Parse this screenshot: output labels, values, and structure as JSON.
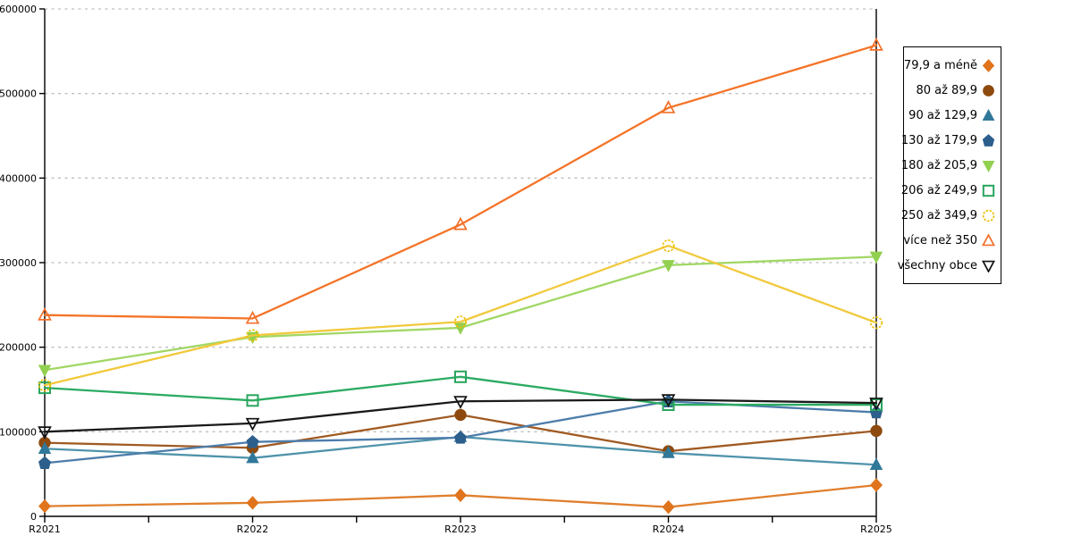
{
  "chart_data": {
    "type": "line",
    "categories": [
      "R2021",
      "R2022",
      "R2023",
      "R2024",
      "R2025"
    ],
    "series": [
      {
        "name": "79,9 a méně",
        "slug": "79-9-a-mene",
        "marker": "diamond",
        "fill": "filled",
        "color": "#df741c",
        "line_color": "#e07f2e",
        "values": [
          12000,
          16000,
          25000,
          11000,
          37000
        ]
      },
      {
        "name": "80 až 89,9",
        "slug": "80-az-89-9",
        "marker": "circle",
        "fill": "filled",
        "color": "#8e4a0e",
        "line_color": "#a05a22",
        "values": [
          87000,
          81000,
          120000,
          77000,
          101000
        ]
      },
      {
        "name": "90 až 129,9",
        "slug": "90-az-129-9",
        "marker": "triangle-up",
        "fill": "filled",
        "color": "#30789a",
        "line_color": "#4f93aa",
        "values": [
          80000,
          69000,
          94000,
          75000,
          61000
        ]
      },
      {
        "name": "130 až 179,9",
        "slug": "130-az-179-9",
        "marker": "pentagon",
        "fill": "filled",
        "color": "#2d5f8d",
        "line_color": "#4d7dab",
        "values": [
          63000,
          88000,
          93000,
          136000,
          123000
        ]
      },
      {
        "name": "180 až 205,9",
        "slug": "180-az-205-9",
        "marker": "triangle-down",
        "fill": "filled",
        "color": "#92d050",
        "line_color": "#a1d765",
        "values": [
          173000,
          212000,
          223000,
          297000,
          307000
        ]
      },
      {
        "name": "206 až 249,9",
        "slug": "206-az-249-9",
        "marker": "square",
        "fill": "hollow",
        "color": "#28a55e",
        "line_color": "#2cab62",
        "values": [
          152000,
          137000,
          165000,
          132000,
          132000
        ]
      },
      {
        "name": "250 až 349,9",
        "slug": "250-az-349-9",
        "marker": "circle",
        "fill": "hollow",
        "color": "#eec004",
        "line_color": "#f1c93c",
        "values": [
          155000,
          214000,
          230000,
          320000,
          229000
        ],
        "dashed_marker": true
      },
      {
        "name": "více než 350",
        "slug": "vice-nez-350",
        "marker": "triangle-up",
        "fill": "hollow",
        "color": "#f3702a",
        "line_color": "#f47428",
        "values": [
          238000,
          234000,
          345000,
          483000,
          557000
        ]
      },
      {
        "name": "všechny obce",
        "slug": "vsechny-obce",
        "marker": "triangle-down",
        "fill": "hollow",
        "color": "#111111",
        "line_color": "#1a1a1a",
        "values": [
          100000,
          110000,
          136000,
          138000,
          134000
        ]
      }
    ],
    "ylim": [
      0,
      600000
    ],
    "y_ticks": [
      0,
      100000,
      200000,
      300000,
      400000,
      500000,
      600000
    ],
    "y_tick_labels": [
      "0",
      "100000",
      "200000",
      "300000",
      "400000",
      "500000",
      "600000"
    ],
    "grid": "horizontal-dashed",
    "legend_position": "right",
    "title": "",
    "xlabel": "",
    "ylabel": ""
  },
  "colors": {
    "background": "#ffffff",
    "grid": "#bfbfbf",
    "axis": "#000000",
    "legend_border": "#000000"
  }
}
